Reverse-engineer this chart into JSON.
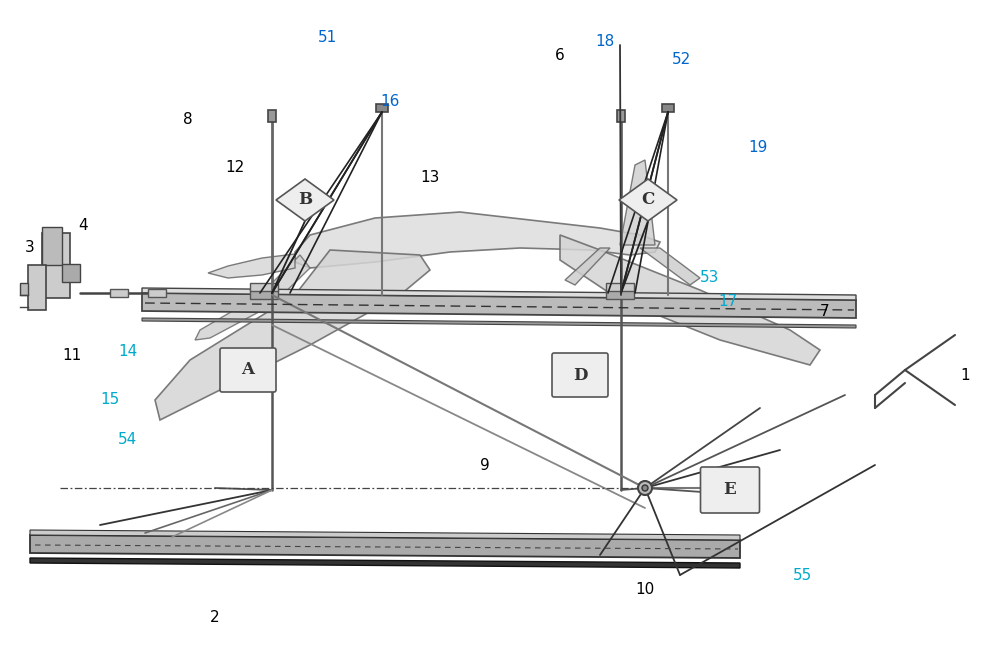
{
  "bg_color": "#ffffff",
  "lc_black": "#000000",
  "lc_blue": "#0066cc",
  "lc_cyan": "#00aacc",
  "lc_gray": "#555555",
  "lc_lgray": "#888888",
  "fig_width": 10.0,
  "fig_height": 6.47,
  "labels_black": [
    [
      "3",
      25,
      248
    ],
    [
      "4",
      78,
      225
    ],
    [
      "8",
      183,
      120
    ],
    [
      "12",
      225,
      168
    ],
    [
      "11",
      62,
      355
    ],
    [
      "13",
      420,
      178
    ],
    [
      "6",
      555,
      55
    ],
    [
      "7",
      820,
      312
    ],
    [
      "9",
      480,
      465
    ],
    [
      "10",
      635,
      590
    ],
    [
      "1",
      960,
      375
    ],
    [
      "2",
      210,
      618
    ]
  ],
  "labels_blue": [
    [
      "51",
      318,
      38
    ],
    [
      "16",
      380,
      102
    ],
    [
      "18",
      595,
      42
    ],
    [
      "52",
      672,
      60
    ],
    [
      "19",
      748,
      148
    ]
  ],
  "labels_cyan": [
    [
      "14",
      118,
      352
    ],
    [
      "15",
      100,
      400
    ],
    [
      "54",
      118,
      440
    ],
    [
      "53",
      700,
      278
    ],
    [
      "17",
      718,
      302
    ],
    [
      "55",
      793,
      575
    ]
  ]
}
